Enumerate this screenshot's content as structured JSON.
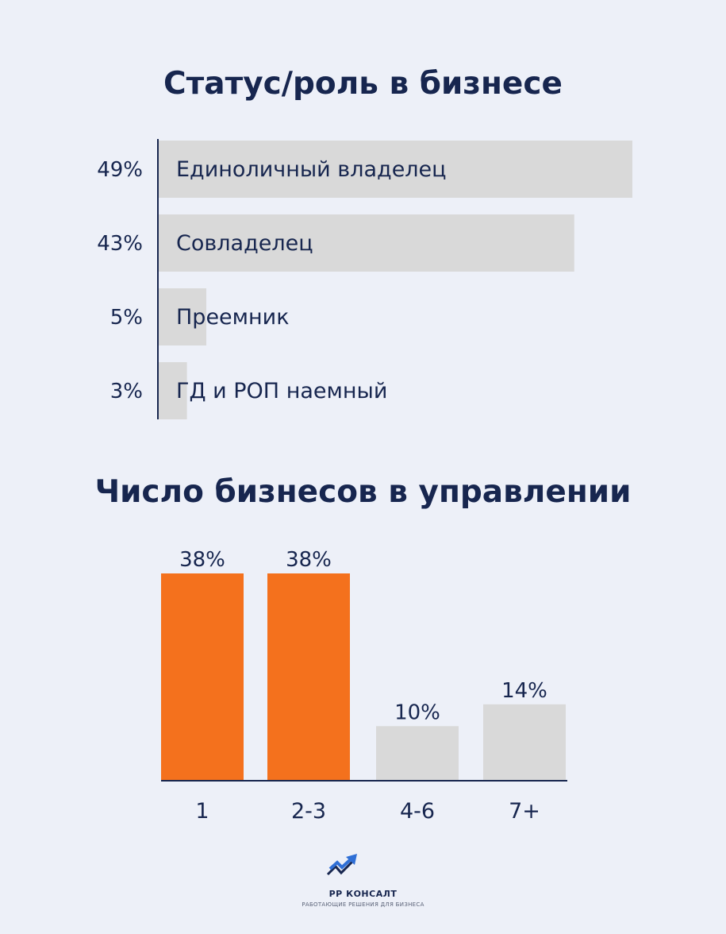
{
  "chart_data": [
    {
      "type": "bar",
      "orientation": "horizontal",
      "title": "Статус/роль в бизнесе",
      "categories": [
        "Единоличный владелец",
        "Совладелец",
        "Преемник",
        "ГД и РОП наемный"
      ],
      "values": [
        49,
        43,
        5,
        3
      ],
      "value_labels": [
        "49%",
        "43%",
        "5%",
        "3%"
      ],
      "unit": "%",
      "bar_color": "#d9d9d9",
      "axis_color": "#17264f"
    },
    {
      "type": "bar",
      "orientation": "vertical",
      "title": "Число бизнесов в управлении",
      "categories": [
        "1",
        "2-3",
        "4-6",
        "7+"
      ],
      "values": [
        38,
        38,
        10,
        14
      ],
      "value_labels": [
        "38%",
        "38%",
        "10%",
        "14%"
      ],
      "unit": "%",
      "bar_colors": [
        "#f4711d",
        "#f4711d",
        "#d9d9d9",
        "#d9d9d9"
      ],
      "axis_color": "#17264f"
    }
  ],
  "logo": {
    "name": "РР КОНСАЛТ",
    "tagline": "РАБОТАЮЩИЕ РЕШЕНИЯ ДЛЯ БИЗНЕСА",
    "colors": {
      "arrow": "#2f6fd6",
      "mark": "#17264f"
    }
  },
  "colors": {
    "background": "#edf0f8",
    "text": "#17264f"
  }
}
